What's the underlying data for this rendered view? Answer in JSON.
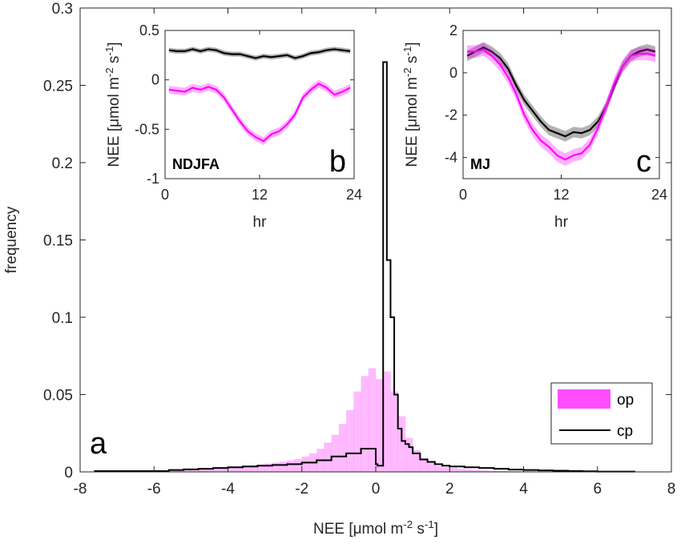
{
  "chart_data": [
    {
      "type": "histogram",
      "panel_label": "a",
      "xlabel": "NEE [μmol m⁻² s⁻¹]",
      "ylabel": "frequency",
      "xlim": [
        -8,
        8
      ],
      "ylim": [
        0,
        0.3
      ],
      "xticks": [
        -8,
        -6,
        -4,
        -2,
        0,
        2,
        4,
        6,
        8
      ],
      "yticks": [
        0,
        0.05,
        0.1,
        0.15,
        0.2,
        0.25,
        0.3
      ],
      "ytick_labels": [
        "0",
        "0.05",
        "0.1",
        "0.15",
        "0.2",
        "0.25",
        "0.3"
      ],
      "legend_position": "bottom-right",
      "bin_width": 0.2,
      "series": [
        {
          "name": "op",
          "style": "filled bars",
          "color": "#FF4DFF",
          "bin_starts": [
            -7.6,
            -7.4,
            -7.2,
            -7.0,
            -6.8,
            -6.6,
            -6.4,
            -6.2,
            -6.0,
            -5.8,
            -5.6,
            -5.4,
            -5.2,
            -5.0,
            -4.8,
            -4.6,
            -4.4,
            -4.2,
            -4.0,
            -3.8,
            -3.6,
            -3.4,
            -3.2,
            -3.0,
            -2.8,
            -2.6,
            -2.4,
            -2.2,
            -2.0,
            -1.8,
            -1.6,
            -1.4,
            -1.2,
            -1.0,
            -0.8,
            -0.6,
            -0.4,
            -0.2,
            0.0,
            0.2,
            0.4,
            0.6,
            0.8,
            1.0,
            1.2,
            1.4,
            1.6,
            1.8,
            2.0,
            2.2,
            2.4,
            2.6,
            2.8,
            3.0,
            3.2,
            3.4,
            3.6,
            3.8,
            4.0,
            4.2,
            4.4,
            4.6,
            4.8,
            5.0,
            5.2,
            5.4,
            5.6,
            5.8,
            6.0,
            6.2,
            6.4,
            6.6,
            6.8
          ],
          "values": [
            0.0003,
            0.0003,
            0.0004,
            0.0004,
            0.0004,
            0.0005,
            0.0005,
            0.0006,
            0.0007,
            0.0008,
            0.001,
            0.0012,
            0.0014,
            0.0016,
            0.0018,
            0.002,
            0.0023,
            0.0026,
            0.003,
            0.0034,
            0.0038,
            0.0043,
            0.0048,
            0.0054,
            0.006,
            0.0067,
            0.0075,
            0.0084,
            0.01,
            0.012,
            0.015,
            0.019,
            0.024,
            0.031,
            0.04,
            0.052,
            0.062,
            0.067,
            0.06,
            0.065,
            0.052,
            0.036,
            0.022,
            0.014,
            0.009,
            0.006,
            0.004,
            0.003,
            0.0025,
            0.002,
            0.0016,
            0.0013,
            0.001,
            0.0008,
            0.0007,
            0.0006,
            0.0005,
            0.0004,
            0.0004,
            0.0003,
            0.0003,
            0.0003,
            0.0002,
            0.0002,
            0.0002,
            0.0002,
            0.0001,
            0.0001,
            0.0001,
            0.0001,
            0.0001,
            0.0001,
            0.0001
          ]
        },
        {
          "name": "cp",
          "style": "step outline",
          "color": "#000000",
          "bin_edges": [
            -7.6,
            -5.6,
            -5.2,
            -4.8,
            -4.4,
            -4.0,
            -3.6,
            -3.2,
            -2.8,
            -2.4,
            -2.0,
            -1.6,
            -1.2,
            -0.8,
            -0.4,
            0.0,
            0.05,
            0.2,
            0.3,
            0.4,
            0.5,
            0.6,
            0.7,
            0.8,
            0.9,
            1.0,
            1.2,
            1.4,
            1.6,
            1.8,
            2.0,
            2.4,
            2.8,
            3.2,
            3.6,
            4.0,
            4.4,
            4.8,
            5.2,
            5.6,
            6.0,
            7.0
          ],
          "values": [
            0.0005,
            0.0012,
            0.0016,
            0.002,
            0.0025,
            0.003,
            0.0035,
            0.004,
            0.0045,
            0.005,
            0.006,
            0.0075,
            0.01,
            0.012,
            0.015,
            0.005,
            0.004,
            0.265,
            0.137,
            0.1,
            0.05,
            0.028,
            0.02,
            0.018,
            0.016,
            0.012,
            0.008,
            0.0065,
            0.005,
            0.004,
            0.0035,
            0.003,
            0.0025,
            0.002,
            0.0015,
            0.0012,
            0.001,
            0.0008,
            0.0006,
            0.0004,
            0.0002
          ]
        }
      ]
    },
    {
      "type": "line",
      "panel_label": "b",
      "season_label": "NDJFA",
      "xlabel": "hr",
      "ylabel": "NEE [μmol m⁻² s⁻¹]",
      "xlim": [
        0,
        24
      ],
      "ylim": [
        -1,
        0.5
      ],
      "xticks": [
        0,
        12,
        24
      ],
      "yticks": [
        -1,
        -0.5,
        0,
        0.5
      ],
      "ytick_labels": [
        "-1",
        "-0.5",
        "0",
        "0.5"
      ],
      "x": [
        0.5,
        1.5,
        2.5,
        3.5,
        4.5,
        5.5,
        6.5,
        7.5,
        8.5,
        9.5,
        10.5,
        11.5,
        12.5,
        13.5,
        14.5,
        15.5,
        16.5,
        17.5,
        18.5,
        19.5,
        20.5,
        21.5,
        22.5,
        23.5
      ],
      "series": [
        {
          "name": "cp",
          "color": "#000000",
          "values": [
            0.3,
            0.29,
            0.29,
            0.31,
            0.29,
            0.31,
            0.3,
            0.27,
            0.26,
            0.26,
            0.24,
            0.22,
            0.24,
            0.23,
            0.24,
            0.25,
            0.22,
            0.24,
            0.27,
            0.28,
            0.3,
            0.31,
            0.3,
            0.29
          ],
          "band": 0.025
        },
        {
          "name": "op",
          "color": "#FF00FF",
          "values": [
            -0.1,
            -0.11,
            -0.12,
            -0.08,
            -0.1,
            -0.07,
            -0.1,
            -0.18,
            -0.3,
            -0.42,
            -0.52,
            -0.58,
            -0.62,
            -0.55,
            -0.52,
            -0.45,
            -0.35,
            -0.18,
            -0.1,
            -0.04,
            -0.08,
            -0.15,
            -0.12,
            -0.08
          ],
          "band": 0.04
        }
      ]
    },
    {
      "type": "line",
      "panel_label": "c",
      "season_label": "MJ",
      "xlabel": "hr",
      "ylabel": "NEE [μmol m⁻² s⁻¹]",
      "xlim": [
        0,
        24
      ],
      "ylim": [
        -5,
        2
      ],
      "xticks": [
        0,
        12,
        24
      ],
      "yticks": [
        -4,
        -2,
        0,
        2
      ],
      "ytick_labels": [
        "-4",
        "-2",
        "0",
        "2"
      ],
      "x": [
        0.5,
        1.5,
        2.5,
        3.5,
        4.5,
        5.5,
        6.5,
        7.5,
        8.5,
        9.5,
        10.5,
        11.5,
        12.5,
        13.5,
        14.5,
        15.5,
        16.5,
        17.5,
        18.5,
        19.5,
        20.5,
        21.5,
        22.5,
        23.5
      ],
      "series": [
        {
          "name": "cp",
          "color": "#000000",
          "values": [
            0.8,
            1.0,
            1.2,
            1.0,
            0.7,
            0.2,
            -0.6,
            -1.3,
            -1.8,
            -2.3,
            -2.7,
            -2.85,
            -3.0,
            -2.8,
            -2.85,
            -2.7,
            -2.3,
            -1.6,
            -0.6,
            0.3,
            0.8,
            1.0,
            1.1,
            1.0
          ],
          "band": 0.25
        },
        {
          "name": "op",
          "color": "#FF00FF",
          "values": [
            1.0,
            1.0,
            1.1,
            0.8,
            0.4,
            -0.2,
            -1.0,
            -2.0,
            -2.7,
            -3.2,
            -3.5,
            -3.9,
            -4.1,
            -3.9,
            -3.8,
            -3.4,
            -2.6,
            -1.6,
            -0.5,
            0.3,
            0.8,
            0.9,
            0.9,
            0.8
          ],
          "band": 0.3
        }
      ]
    }
  ]
}
